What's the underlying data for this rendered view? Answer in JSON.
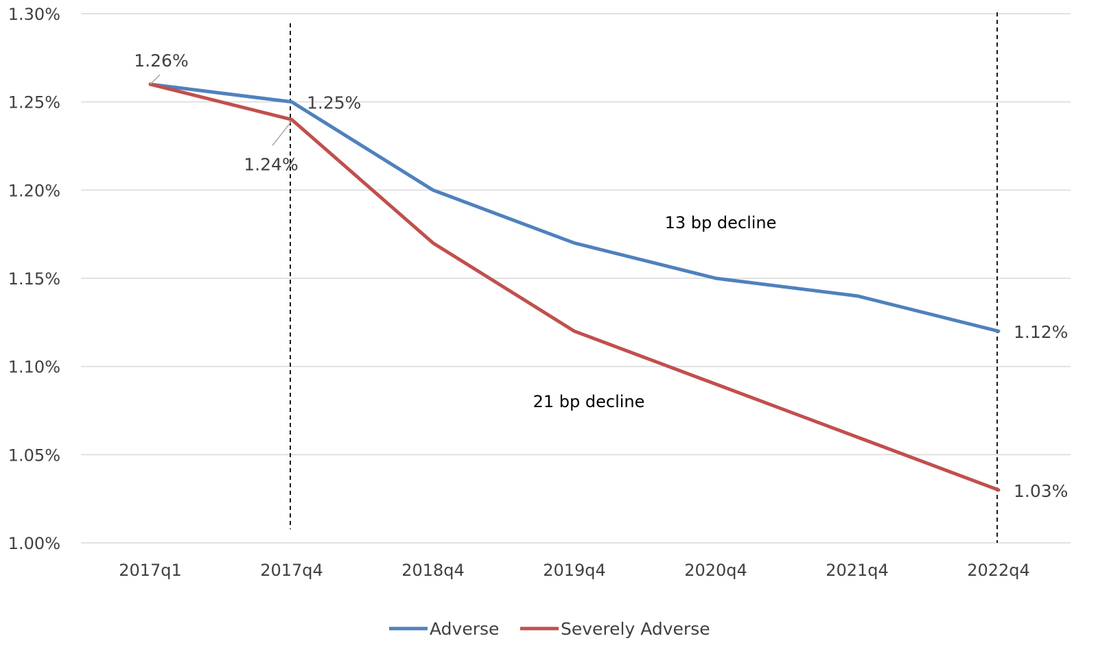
{
  "chart_data": {
    "type": "line",
    "title": "",
    "xlabel": "",
    "ylabel": "",
    "categories": [
      "2017q1",
      "2017q4",
      "2018q4",
      "2019q4",
      "2020q4",
      "2021q4",
      "2022q4"
    ],
    "series": [
      {
        "name": "Adverse",
        "color": "#4f81bd",
        "values": [
          1.26,
          1.25,
          1.2,
          1.17,
          1.15,
          1.14,
          1.12
        ]
      },
      {
        "name": "Severely Adverse",
        "color": "#c0504d",
        "values": [
          1.26,
          1.24,
          1.17,
          1.12,
          1.09,
          1.06,
          1.03
        ]
      }
    ],
    "ylim": [
      1.0,
      1.3
    ],
    "yticks": [
      "1.00%",
      "1.05%",
      "1.10%",
      "1.15%",
      "1.20%",
      "1.25%",
      "1.30%"
    ],
    "grid": true,
    "legend_position": "bottom",
    "data_labels": [
      {
        "text": "1.26%",
        "series": "Adverse",
        "category": "2017q1"
      },
      {
        "text": "1.25%",
        "series": "Adverse",
        "category": "2017q4"
      },
      {
        "text": "1.24%",
        "series": "Severely Adverse",
        "category": "2017q4"
      },
      {
        "text": "1.12%",
        "series": "Adverse",
        "category": "2022q4"
      },
      {
        "text": "1.03%",
        "series": "Severely Adverse",
        "category": "2022q4"
      }
    ],
    "annotations": [
      {
        "text": "13 bp decline"
      },
      {
        "text": "21 bp decline"
      }
    ],
    "reference_lines": [
      {
        "category": "2017q4",
        "style": "dashed"
      },
      {
        "category": "2022q4",
        "style": "dashed"
      }
    ]
  }
}
